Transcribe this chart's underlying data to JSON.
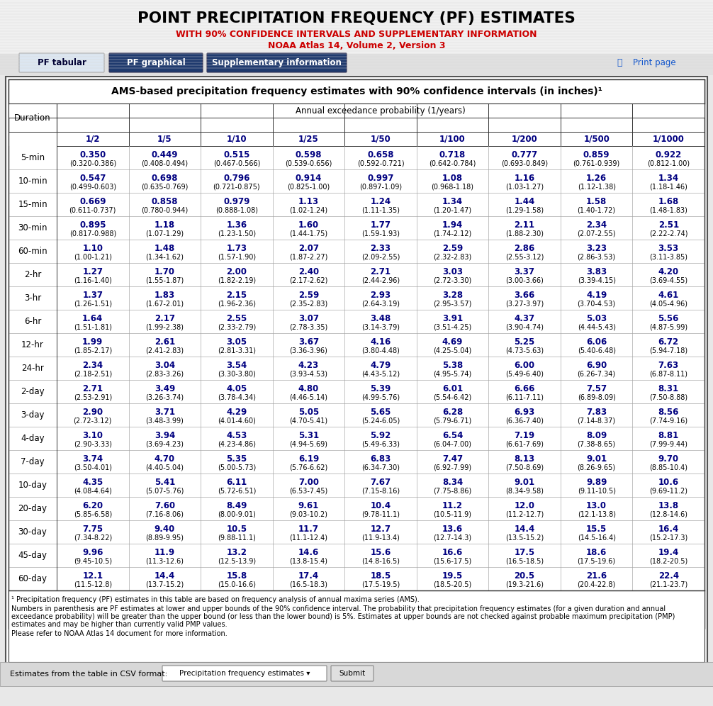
{
  "title1": "POINT PRECIPITATION FREQUENCY (PF) ESTIMATES",
  "title2": "WITH 90% CONFIDENCE INTERVALS AND SUPPLEMENTARY INFORMATION",
  "title3": "NOAA Atlas 14, Volume 2, Version 3",
  "tab1": "PF tabular",
  "tab2": "PF graphical",
  "tab3": "Supplementary information",
  "table_title": "AMS-based precipitation frequency estimates with 90% confidence intervals (in inches)¹",
  "col_header1": "Annual exceedance probability (1/years)",
  "return_periods": [
    "1/2",
    "1/5",
    "1/10",
    "1/25",
    "1/50",
    "1/100",
    "1/200",
    "1/500",
    "1/1000"
  ],
  "durations": [
    "5-min",
    "10-min",
    "15-min",
    "30-min",
    "60-min",
    "2-hr",
    "3-hr",
    "6-hr",
    "12-hr",
    "24-hr",
    "2-day",
    "3-day",
    "4-day",
    "7-day",
    "10-day",
    "20-day",
    "30-day",
    "45-day",
    "60-day"
  ],
  "data": [
    [
      "0.350\n(0.320-0.386)",
      "0.449\n(0.408-0.494)",
      "0.515\n(0.467-0.566)",
      "0.598\n(0.539-0.656)",
      "0.658\n(0.592-0.721)",
      "0.718\n(0.642-0.784)",
      "0.777\n(0.693-0.849)",
      "0.859\n(0.761-0.939)",
      "0.922\n(0.812-1.00)"
    ],
    [
      "0.547\n(0.499-0.603)",
      "0.698\n(0.635-0.769)",
      "0.796\n(0.721-0.875)",
      "0.914\n(0.825-1.00)",
      "0.997\n(0.897-1.09)",
      "1.08\n(0.968-1.18)",
      "1.16\n(1.03-1.27)",
      "1.26\n(1.12-1.38)",
      "1.34\n(1.18-1.46)"
    ],
    [
      "0.669\n(0.611-0.737)",
      "0.858\n(0.780-0.944)",
      "0.979\n(0.888-1.08)",
      "1.13\n(1.02-1.24)",
      "1.24\n(1.11-1.35)",
      "1.34\n(1.20-1.47)",
      "1.44\n(1.29-1.58)",
      "1.58\n(1.40-1.72)",
      "1.68\n(1.48-1.83)"
    ],
    [
      "0.895\n(0.817-0.988)",
      "1.18\n(1.07-1.29)",
      "1.36\n(1.23-1.50)",
      "1.60\n(1.44-1.75)",
      "1.77\n(1.59-1.93)",
      "1.94\n(1.74-2.12)",
      "2.11\n(1.88-2.30)",
      "2.34\n(2.07-2.55)",
      "2.51\n(2.22-2.74)"
    ],
    [
      "1.10\n(1.00-1.21)",
      "1.48\n(1.34-1.62)",
      "1.73\n(1.57-1.90)",
      "2.07\n(1.87-2.27)",
      "2.33\n(2.09-2.55)",
      "2.59\n(2.32-2.83)",
      "2.86\n(2.55-3.12)",
      "3.23\n(2.86-3.53)",
      "3.53\n(3.11-3.85)"
    ],
    [
      "1.27\n(1.16-1.40)",
      "1.70\n(1.55-1.87)",
      "2.00\n(1.82-2.19)",
      "2.40\n(2.17-2.62)",
      "2.71\n(2.44-2.96)",
      "3.03\n(2.72-3.30)",
      "3.37\n(3.00-3.66)",
      "3.83\n(3.39-4.15)",
      "4.20\n(3.69-4.55)"
    ],
    [
      "1.37\n(1.26-1.51)",
      "1.83\n(1.67-2.01)",
      "2.15\n(1.96-2.36)",
      "2.59\n(2.35-2.83)",
      "2.93\n(2.64-3.19)",
      "3.28\n(2.95-3.57)",
      "3.66\n(3.27-3.97)",
      "4.19\n(3.70-4.53)",
      "4.61\n(4.05-4.96)"
    ],
    [
      "1.64\n(1.51-1.81)",
      "2.17\n(1.99-2.38)",
      "2.55\n(2.33-2.79)",
      "3.07\n(2.78-3.35)",
      "3.48\n(3.14-3.79)",
      "3.91\n(3.51-4.25)",
      "4.37\n(3.90-4.74)",
      "5.03\n(4.44-5.43)",
      "5.56\n(4.87-5.99)"
    ],
    [
      "1.99\n(1.85-2.17)",
      "2.61\n(2.41-2.83)",
      "3.05\n(2.81-3.31)",
      "3.67\n(3.36-3.96)",
      "4.16\n(3.80-4.48)",
      "4.69\n(4.25-5.04)",
      "5.25\n(4.73-5.63)",
      "6.06\n(5.40-6.48)",
      "6.72\n(5.94-7.18)"
    ],
    [
      "2.34\n(2.18-2.51)",
      "3.04\n(2.83-3.26)",
      "3.54\n(3.30-3.80)",
      "4.23\n(3.93-4.53)",
      "4.79\n(4.43-5.12)",
      "5.38\n(4.95-5.74)",
      "6.00\n(5.49-6.40)",
      "6.90\n(6.26-7.34)",
      "7.63\n(6.87-8.11)"
    ],
    [
      "2.71\n(2.53-2.91)",
      "3.49\n(3.26-3.74)",
      "4.05\n(3.78-4.34)",
      "4.80\n(4.46-5.14)",
      "5.39\n(4.99-5.76)",
      "6.01\n(5.54-6.42)",
      "6.66\n(6.11-7.11)",
      "7.57\n(6.89-8.09)",
      "8.31\n(7.50-8.88)"
    ],
    [
      "2.90\n(2.72-3.12)",
      "3.71\n(3.48-3.99)",
      "4.29\n(4.01-4.60)",
      "5.05\n(4.70-5.41)",
      "5.65\n(5.24-6.05)",
      "6.28\n(5.79-6.71)",
      "6.93\n(6.36-7.40)",
      "7.83\n(7.14-8.37)",
      "8.56\n(7.74-9.16)"
    ],
    [
      "3.10\n(2.90-3.33)",
      "3.94\n(3.69-4.23)",
      "4.53\n(4.23-4.86)",
      "5.31\n(4.94-5.69)",
      "5.92\n(5.49-6.33)",
      "6.54\n(6.04-7.00)",
      "7.19\n(6.61-7.69)",
      "8.09\n(7.38-8.65)",
      "8.81\n(7.99-9.44)"
    ],
    [
      "3.74\n(3.50-4.01)",
      "4.70\n(4.40-5.04)",
      "5.35\n(5.00-5.73)",
      "6.19\n(5.76-6.62)",
      "6.83\n(6.34-7.30)",
      "7.47\n(6.92-7.99)",
      "8.13\n(7.50-8.69)",
      "9.01\n(8.26-9.65)",
      "9.70\n(8.85-10.4)"
    ],
    [
      "4.35\n(4.08-4.64)",
      "5.41\n(5.07-5.76)",
      "6.11\n(5.72-6.51)",
      "7.00\n(6.53-7.45)",
      "7.67\n(7.15-8.16)",
      "8.34\n(7.75-8.86)",
      "9.01\n(8.34-9.58)",
      "9.89\n(9.11-10.5)",
      "10.6\n(9.69-11.2)"
    ],
    [
      "6.20\n(5.85-6.58)",
      "7.60\n(7.16-8.06)",
      "8.49\n(8.00-9.01)",
      "9.61\n(9.03-10.2)",
      "10.4\n(9.78-11.1)",
      "11.2\n(10.5-11.9)",
      "12.0\n(11.2-12.7)",
      "13.0\n(12.1-13.8)",
      "13.8\n(12.8-14.6)"
    ],
    [
      "7.75\n(7.34-8.22)",
      "9.40\n(8.89-9.95)",
      "10.5\n(9.88-11.1)",
      "11.7\n(11.1-12.4)",
      "12.7\n(11.9-13.4)",
      "13.6\n(12.7-14.3)",
      "14.4\n(13.5-15.2)",
      "15.5\n(14.5-16.4)",
      "16.4\n(15.2-17.3)"
    ],
    [
      "9.96\n(9.45-10.5)",
      "11.9\n(11.3-12.6)",
      "13.2\n(12.5-13.9)",
      "14.6\n(13.8-15.4)",
      "15.6\n(14.8-16.5)",
      "16.6\n(15.6-17.5)",
      "17.5\n(16.5-18.5)",
      "18.6\n(17.5-19.6)",
      "19.4\n(18.2-20.5)"
    ],
    [
      "12.1\n(11.5-12.8)",
      "14.4\n(13.7-15.2)",
      "15.8\n(15.0-16.6)",
      "17.4\n(16.5-18.3)",
      "18.5\n(17.5-19.5)",
      "19.5\n(18.5-20.5)",
      "20.5\n(19.3-21.6)",
      "21.6\n(20.4-22.8)",
      "22.4\n(21.1-23.7)"
    ]
  ],
  "footnote1": "¹ Precipitation frequency (PF) estimates in this table are based on frequency analysis of annual maxima series (AMS).",
  "footnote2": "Numbers in parenthesis are PF estimates at lower and upper bounds of the 90% confidence interval. The probability that precipitation frequency estimates (for a given duration and annual exceedance probability) will be greater than the upper bound (or less than the lower bound) is 5%. Estimates at upper bounds are not checked against probable maximum precipitation (PMP) estimates and may be higher than currently valid PMP values.",
  "footnote3": "Please refer to NOAA Atlas 14 document for more information.",
  "csv_label": "Estimates from the table in CSV format:",
  "dropdown_text": "Precipitation frequency estimates ▾",
  "submit_text": "Submit"
}
